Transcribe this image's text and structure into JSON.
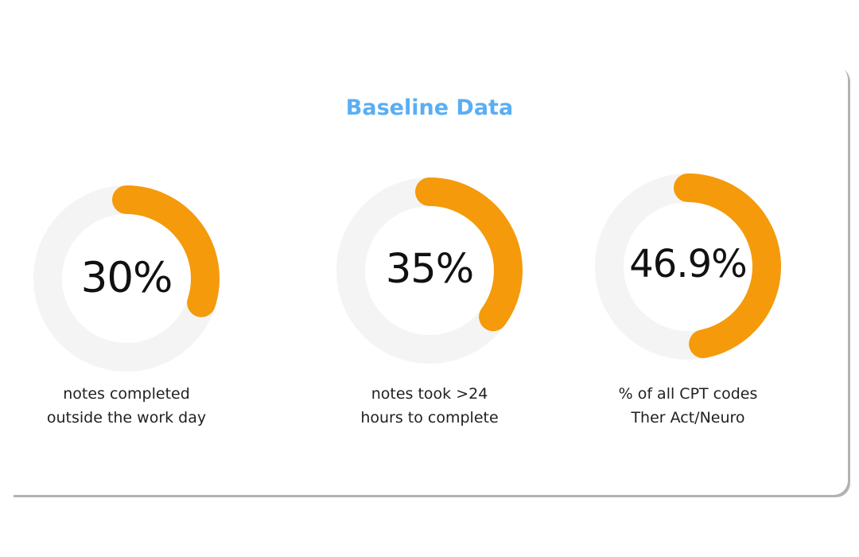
{
  "title": "Baseline Data",
  "colors": {
    "title": "#5aaef3",
    "arc": "#f59a0a",
    "track": "#f4f4f4",
    "text": "#111111"
  },
  "chart_data": [
    {
      "type": "pie",
      "variant": "donut",
      "value": 30,
      "label": "30%",
      "caption_lines": [
        "notes completed",
        "outside the work day"
      ]
    },
    {
      "type": "pie",
      "variant": "donut",
      "value": 35,
      "label": "35%",
      "caption_lines": [
        "notes took >24",
        "hours to complete"
      ]
    },
    {
      "type": "pie",
      "variant": "donut",
      "value": 46.9,
      "label": "46.9%",
      "caption_lines": [
        "% of all CPT codes",
        "Ther Act/Neuro"
      ]
    }
  ]
}
